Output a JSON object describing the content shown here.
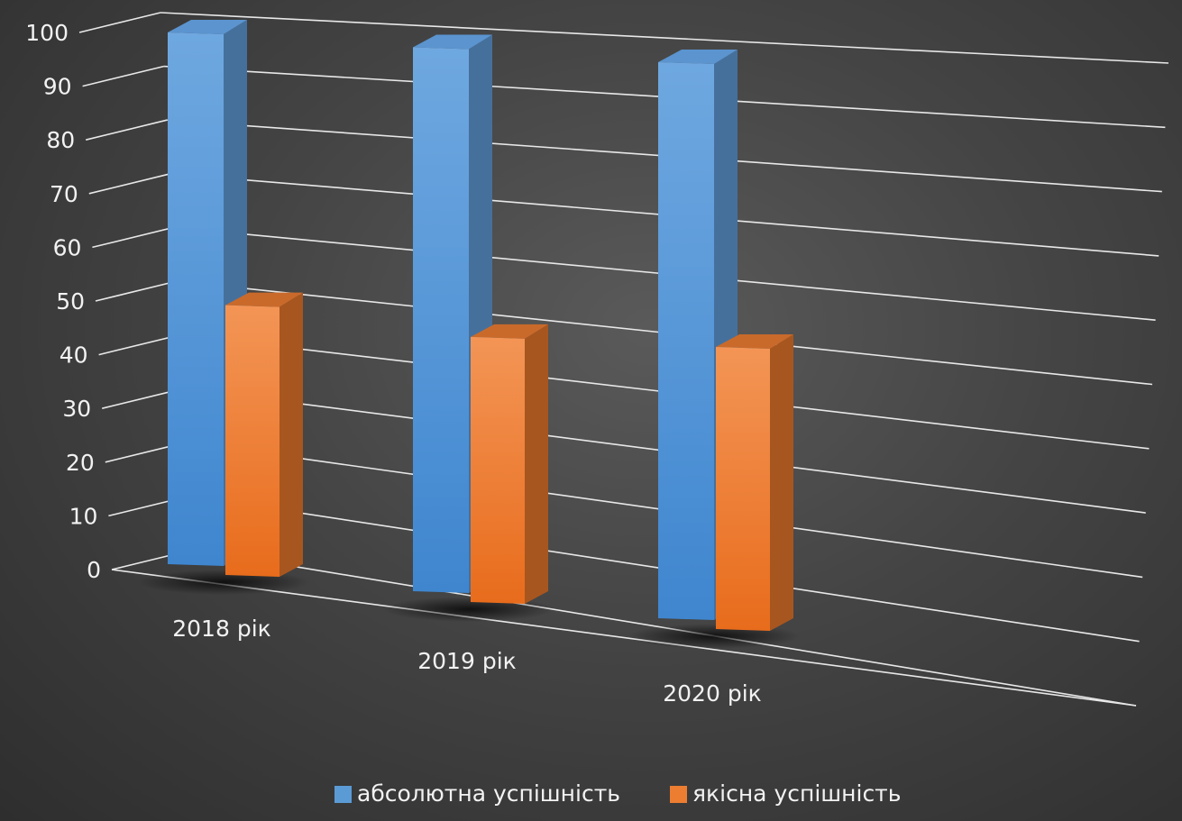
{
  "chart_data": {
    "type": "bar",
    "title": "",
    "xlabel": "",
    "ylabel": "",
    "categories": [
      "2018 рік",
      "2019 рік",
      "2020 рік"
    ],
    "series": [
      {
        "name": "абсолютна успішність",
        "values": [
          100,
          100,
          100
        ],
        "color": "#5b9bd5"
      },
      {
        "name": "якісна успішність",
        "values": [
          51,
          49,
          51
        ],
        "color": "#ed7d31"
      }
    ],
    "ylim": [
      0,
      100
    ],
    "yticks": [
      0,
      10,
      20,
      30,
      40,
      50,
      60,
      70,
      80,
      90,
      100
    ],
    "grid": true,
    "style": "3d-column",
    "legend_position": "bottom"
  }
}
